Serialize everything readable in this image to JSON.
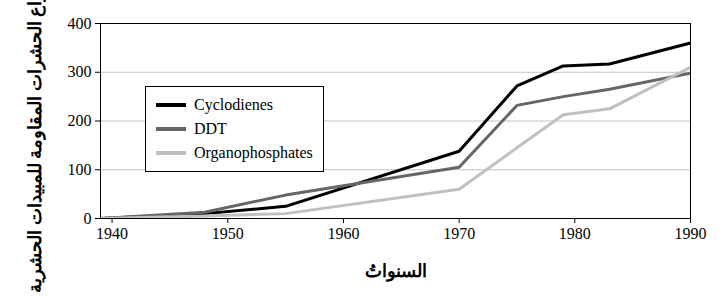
{
  "chart_data": {
    "type": "line",
    "x_label": "السنواتُ",
    "y_label": "عدد أنواع الحشرات المقاومة للمبيدات الحشرية",
    "x": [
      1939,
      1948,
      1955,
      1970,
      1975,
      1979,
      1983,
      1990
    ],
    "series": [
      {
        "name": "Cyclodienes",
        "color": "#000000",
        "values": [
          0,
          10,
          25,
          138,
          272,
          313,
          317,
          360
        ]
      },
      {
        "name": "DDT",
        "color": "#666666",
        "values": [
          0,
          13,
          48,
          105,
          232,
          250,
          265,
          298
        ]
      },
      {
        "name": "Organophosphates",
        "color": "#c0c0c0",
        "values": [
          0,
          5,
          10,
          60,
          145,
          213,
          225,
          310
        ]
      }
    ],
    "xlim": [
      1939,
      1990
    ],
    "xticks": [
      1940,
      1950,
      1960,
      1970,
      1980,
      1990
    ],
    "ylim": [
      0,
      400
    ],
    "yticks": [
      0,
      100,
      200,
      300,
      400
    ],
    "grid": true,
    "legend": "upper left"
  }
}
